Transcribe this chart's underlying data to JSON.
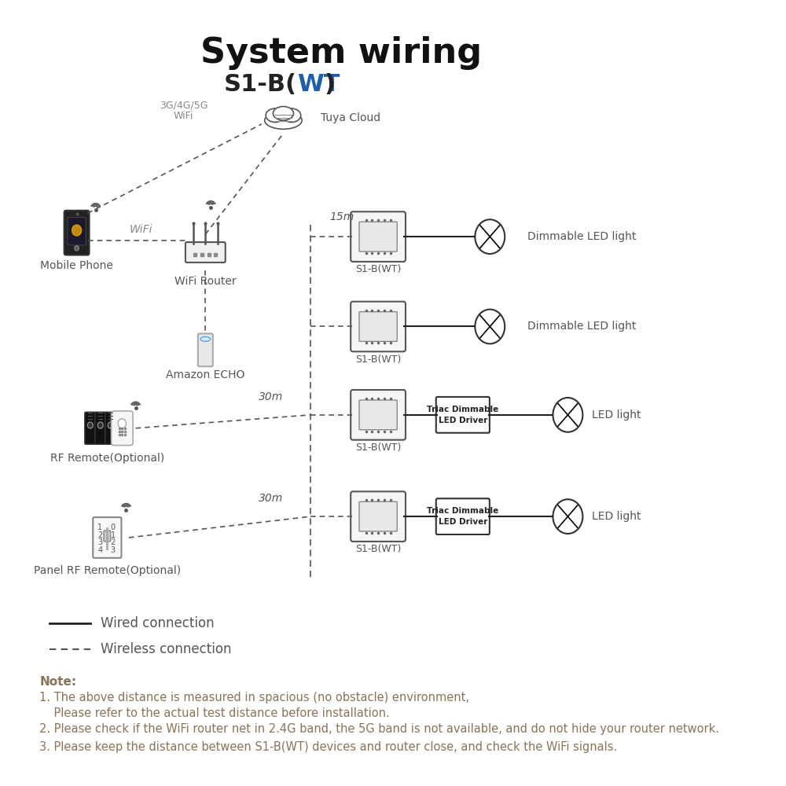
{
  "title": "System wiring",
  "subtitle_black": "S1-B(",
  "subtitle_blue": "WT",
  "subtitle_black2": ")",
  "bg_color": "#ffffff",
  "title_fontsize": 32,
  "subtitle_fontsize": 22,
  "note_color": "#8B7355",
  "note_fontsize": 11,
  "legend_fontsize": 12,
  "diagram_color": "#333333",
  "blue_color": "#1a5fb4",
  "notes": [
    "Note:",
    "1. The above distance is measured in spacious (no obstacle) environment,",
    "    Please refer to the actual test distance before installation.",
    "2. Please check if the WiFi router net in 2.4G band, the 5G band is not available, and do not hide your router network.",
    "3. Please keep the distance between S1-B(WT) devices and router close, and check the WiFi signals."
  ]
}
